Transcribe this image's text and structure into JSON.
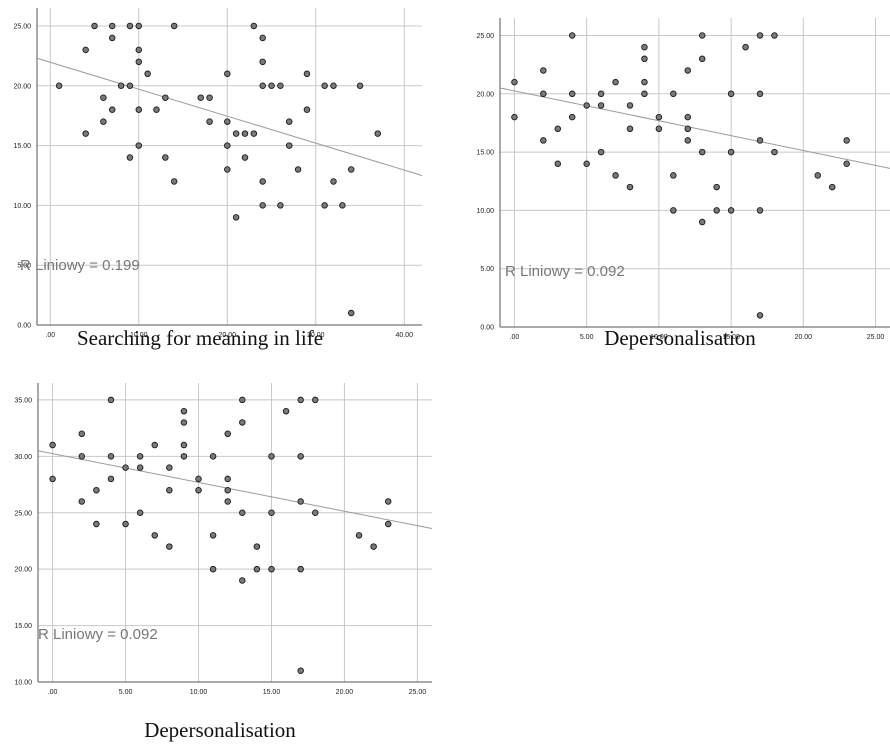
{
  "charts": [
    {
      "caption": "Searching for meaning in life",
      "r2_text": "R  Liniowy = 0.199",
      "chart_data": {
        "type": "scatter",
        "x_ticks": [
          ".00",
          "10.00",
          "20.00",
          "30.00",
          "40.00"
        ],
        "y_ticks": [
          "0.00",
          "5.00",
          "10.00",
          "15.00",
          "20.00",
          "25.00"
        ],
        "xlim": [
          -1.5,
          42
        ],
        "ylim": [
          0,
          26.5
        ],
        "grid": true,
        "fit_line": {
          "x0": -1.5,
          "y0": 22.3,
          "x1": 42,
          "y1": 12.5
        },
        "points": [
          [
            1,
            20
          ],
          [
            4,
            23
          ],
          [
            4,
            16
          ],
          [
            5,
            25
          ],
          [
            6,
            17
          ],
          [
            6,
            19
          ],
          [
            7,
            25
          ],
          [
            7,
            24
          ],
          [
            7,
            18
          ],
          [
            8,
            20
          ],
          [
            9,
            25
          ],
          [
            9,
            20
          ],
          [
            9,
            14
          ],
          [
            10,
            25
          ],
          [
            10,
            23
          ],
          [
            10,
            22
          ],
          [
            10,
            18
          ],
          [
            10,
            15
          ],
          [
            11,
            21
          ],
          [
            12,
            18
          ],
          [
            13,
            19
          ],
          [
            13,
            14
          ],
          [
            14,
            25
          ],
          [
            14,
            12
          ],
          [
            17,
            19
          ],
          [
            18,
            19
          ],
          [
            18,
            17
          ],
          [
            20,
            21
          ],
          [
            20,
            17
          ],
          [
            20,
            15
          ],
          [
            20,
            13
          ],
          [
            21,
            16
          ],
          [
            21,
            9
          ],
          [
            22,
            16
          ],
          [
            22,
            14
          ],
          [
            23,
            25
          ],
          [
            23,
            16
          ],
          [
            24,
            24
          ],
          [
            24,
            22
          ],
          [
            24,
            20
          ],
          [
            24,
            12
          ],
          [
            24,
            10
          ],
          [
            25,
            20
          ],
          [
            26,
            20
          ],
          [
            26,
            10
          ],
          [
            27,
            17
          ],
          [
            27,
            15
          ],
          [
            28,
            13
          ],
          [
            29,
            21
          ],
          [
            29,
            18
          ],
          [
            31,
            20
          ],
          [
            31,
            10
          ],
          [
            32,
            20
          ],
          [
            32,
            12
          ],
          [
            33,
            10
          ],
          [
            34,
            13
          ],
          [
            34,
            1
          ],
          [
            35,
            20
          ],
          [
            37,
            16
          ]
        ]
      }
    },
    {
      "caption": "Depersonalisation",
      "r2_text": "R  Liniowy = 0.092",
      "chart_data": {
        "type": "scatter",
        "x_ticks": [
          ".00",
          "5.00",
          "10.00",
          "15.00",
          "20.00",
          "25.00"
        ],
        "y_ticks": [
          "0.00",
          "5.00",
          "10.00",
          "15.00",
          "20.00",
          "25.00"
        ],
        "xlim": [
          -1,
          26
        ],
        "ylim": [
          0,
          26.5
        ],
        "grid": true,
        "fit_line": {
          "x0": -1,
          "y0": 20.5,
          "x1": 26,
          "y1": 13.6
        },
        "points": [
          [
            0,
            21
          ],
          [
            0,
            18
          ],
          [
            2,
            22
          ],
          [
            2,
            20
          ],
          [
            2,
            16
          ],
          [
            3,
            17
          ],
          [
            3,
            14
          ],
          [
            4,
            25
          ],
          [
            4,
            20
          ],
          [
            4,
            18
          ],
          [
            5,
            19
          ],
          [
            5,
            14
          ],
          [
            6,
            20
          ],
          [
            6,
            19
          ],
          [
            6,
            15
          ],
          [
            7,
            21
          ],
          [
            7,
            13
          ],
          [
            8,
            19
          ],
          [
            8,
            17
          ],
          [
            8,
            12
          ],
          [
            9,
            24
          ],
          [
            9,
            23
          ],
          [
            9,
            21
          ],
          [
            9,
            20
          ],
          [
            10,
            18
          ],
          [
            10,
            17
          ],
          [
            11,
            20
          ],
          [
            11,
            13
          ],
          [
            11,
            10
          ],
          [
            12,
            22
          ],
          [
            12,
            18
          ],
          [
            12,
            17
          ],
          [
            12,
            16
          ],
          [
            13,
            25
          ],
          [
            13,
            23
          ],
          [
            13,
            15
          ],
          [
            13,
            9
          ],
          [
            14,
            12
          ],
          [
            14,
            10
          ],
          [
            15,
            20
          ],
          [
            15,
            15
          ],
          [
            15,
            10
          ],
          [
            16,
            24
          ],
          [
            17,
            25
          ],
          [
            17,
            20
          ],
          [
            17,
            16
          ],
          [
            17,
            10
          ],
          [
            17,
            1
          ],
          [
            18,
            25
          ],
          [
            18,
            15
          ],
          [
            21,
            13
          ],
          [
            22,
            12
          ],
          [
            23,
            16
          ],
          [
            23,
            14
          ]
        ]
      }
    },
    {
      "caption": "Depersonalisation",
      "r2_text": "R  Liniowy = 0.092",
      "chart_data": {
        "type": "scatter",
        "x_ticks": [
          ".00",
          "5.00",
          "10.00",
          "15.00",
          "20.00",
          "25.00"
        ],
        "y_ticks": [
          "10.00",
          "15.00",
          "20.00",
          "25.00",
          "30.00",
          "35.00"
        ],
        "xlim": [
          -1,
          26
        ],
        "ylim": [
          10,
          36.5
        ],
        "grid": true,
        "fit_line": {
          "x0": -1,
          "y0": 30.5,
          "x1": 26,
          "y1": 23.6
        },
        "points": [
          [
            0,
            31
          ],
          [
            0,
            28
          ],
          [
            2,
            32
          ],
          [
            2,
            30
          ],
          [
            2,
            26
          ],
          [
            3,
            27
          ],
          [
            3,
            24
          ],
          [
            4,
            35
          ],
          [
            4,
            30
          ],
          [
            4,
            28
          ],
          [
            5,
            29
          ],
          [
            5,
            24
          ],
          [
            6,
            30
          ],
          [
            6,
            29
          ],
          [
            6,
            25
          ],
          [
            7,
            31
          ],
          [
            7,
            23
          ],
          [
            8,
            29
          ],
          [
            8,
            27
          ],
          [
            8,
            22
          ],
          [
            9,
            34
          ],
          [
            9,
            33
          ],
          [
            9,
            31
          ],
          [
            9,
            30
          ],
          [
            10,
            28
          ],
          [
            10,
            27
          ],
          [
            11,
            30
          ],
          [
            11,
            23
          ],
          [
            11,
            20
          ],
          [
            12,
            32
          ],
          [
            12,
            28
          ],
          [
            12,
            27
          ],
          [
            12,
            26
          ],
          [
            13,
            35
          ],
          [
            13,
            33
          ],
          [
            13,
            25
          ],
          [
            13,
            19
          ],
          [
            14,
            22
          ],
          [
            14,
            20
          ],
          [
            15,
            30
          ],
          [
            15,
            25
          ],
          [
            15,
            20
          ],
          [
            16,
            34
          ],
          [
            17,
            35
          ],
          [
            17,
            30
          ],
          [
            17,
            26
          ],
          [
            17,
            20
          ],
          [
            17,
            11
          ],
          [
            18,
            35
          ],
          [
            18,
            25
          ],
          [
            21,
            23
          ],
          [
            22,
            22
          ],
          [
            23,
            26
          ],
          [
            23,
            24
          ]
        ]
      }
    }
  ]
}
